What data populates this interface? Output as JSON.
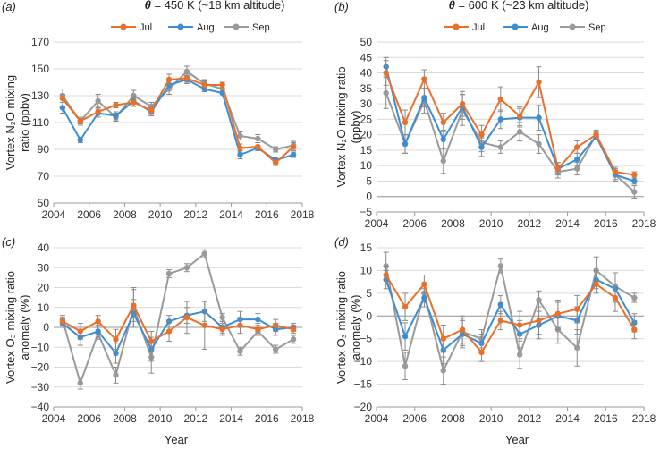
{
  "figure": {
    "titles": {
      "left": {
        "theta": "θ",
        "text": " = 450 K (~18 km altitude)"
      },
      "right": {
        "theta": "θ",
        "text": " = 600 K (~23 km altitude)"
      }
    },
    "xlabel": "Year",
    "legend": [
      "Jul",
      "Aug",
      "Sep"
    ],
    "colors": {
      "Jul": "#e8702a",
      "Aug": "#3d8dd0",
      "Sep": "#9a9a9a"
    }
  },
  "chart_data": [
    {
      "panel": "(a)",
      "type": "line",
      "title": "θ = 450 K (~18 km altitude)",
      "xlabel": "",
      "ylabel": [
        "Vortex N₂O mixing",
        "ratio (ppbv)"
      ],
      "xlim": [
        2004,
        2018
      ],
      "xticks": [
        2004,
        2006,
        2008,
        2010,
        2012,
        2014,
        2016,
        2018
      ],
      "ylim": [
        50,
        170
      ],
      "yticks": [
        50,
        70,
        90,
        110,
        130,
        150,
        170
      ],
      "series": [
        {
          "name": "Jul",
          "x": [
            2004.5,
            2005.5,
            2006.5,
            2007.5,
            2008.5,
            2009.5,
            2010.5,
            2011.5,
            2012.5,
            2013.5,
            2014.5,
            2015.5,
            2016.5,
            2017.5
          ],
          "y": [
            128,
            111,
            118,
            123,
            125,
            119,
            142,
            143,
            138,
            138,
            91,
            92,
            80,
            92
          ],
          "err": [
            3,
            2,
            4,
            2,
            3,
            3,
            4,
            3,
            3,
            2,
            3,
            3,
            2,
            3
          ]
        },
        {
          "name": "Aug",
          "x": [
            2004.5,
            2005.5,
            2006.5,
            2007.5,
            2008.5,
            2009.5,
            2010.5,
            2011.5,
            2012.5,
            2013.5,
            2014.5,
            2015.5,
            2016.5,
            2017.5
          ],
          "y": [
            121,
            97,
            117,
            115,
            126,
            118,
            138,
            142,
            135,
            132,
            86,
            91,
            82,
            86
          ],
          "err": [
            4,
            2,
            3,
            3,
            4,
            3,
            3,
            3,
            2,
            3,
            3,
            2,
            2,
            2
          ]
        },
        {
          "name": "Sep",
          "x": [
            2004.5,
            2005.5,
            2006.5,
            2007.5,
            2008.5,
            2009.5,
            2010.5,
            2011.5,
            2012.5,
            2013.5,
            2014.5,
            2015.5,
            2016.5,
            2017.5
          ],
          "y": [
            130,
            111,
            126,
            114,
            130,
            122,
            135,
            148,
            139,
            135,
            100,
            98,
            90,
            93
          ],
          "err": [
            5,
            3,
            5,
            3,
            4,
            3,
            4,
            4,
            3,
            3,
            3,
            3,
            2,
            3
          ]
        }
      ]
    },
    {
      "panel": "(b)",
      "type": "line",
      "title": "θ = 600 K (~23 km altitude)",
      "xlabel": "",
      "ylabel": [
        "Vortex N₂O mixing ratio",
        "(ppbv)"
      ],
      "xlim": [
        2004,
        2018
      ],
      "xticks": [
        2004,
        2006,
        2008,
        2010,
        2012,
        2014,
        2016,
        2018
      ],
      "ylim": [
        -5,
        50
      ],
      "yticks": [
        -5,
        0,
        5,
        10,
        15,
        20,
        25,
        30,
        35,
        40,
        45,
        50
      ],
      "series": [
        {
          "name": "Jul",
          "x": [
            2004.5,
            2005.5,
            2006.5,
            2007.5,
            2008.5,
            2009.5,
            2010.5,
            2011.5,
            2012.5,
            2013.5,
            2014.5,
            2015.5,
            2016.5,
            2017.5
          ],
          "y": [
            40,
            24,
            38,
            24,
            30,
            20,
            31.5,
            26,
            37,
            9,
            16,
            20,
            8,
            7
          ],
          "err": [
            4,
            4,
            3,
            3,
            4,
            3,
            4,
            3,
            5,
            2,
            2,
            1,
            1.5,
            1
          ]
        },
        {
          "name": "Aug",
          "x": [
            2004.5,
            2005.5,
            2006.5,
            2007.5,
            2008.5,
            2009.5,
            2010.5,
            2011.5,
            2012.5,
            2013.5,
            2014.5,
            2015.5,
            2016.5,
            2017.5
          ],
          "y": [
            42,
            17,
            32,
            18.5,
            29,
            16,
            25,
            25.5,
            25.5,
            9,
            12,
            19.5,
            7,
            5
          ],
          "err": [
            3,
            3,
            3,
            3,
            4,
            3,
            3,
            3,
            4,
            2,
            2,
            1,
            1.5,
            1
          ]
        },
        {
          "name": "Sep",
          "x": [
            2004.5,
            2005.5,
            2006.5,
            2007.5,
            2008.5,
            2009.5,
            2010.5,
            2011.5,
            2012.5,
            2013.5,
            2014.5,
            2015.5,
            2016.5,
            2017.5
          ],
          "y": [
            33.5,
            17,
            31,
            11.5,
            28,
            17.5,
            16,
            21,
            17,
            8,
            9,
            20,
            7,
            1.5
          ],
          "err": [
            5,
            3,
            4,
            4,
            5,
            3,
            2,
            3,
            3,
            2,
            2,
            1.5,
            2,
            2
          ]
        }
      ]
    },
    {
      "panel": "(c)",
      "type": "line",
      "xlabel": "Year",
      "ylabel": [
        "Vortex O₃ mixing ratio",
        "anomaly (%)"
      ],
      "xlim": [
        2004,
        2018
      ],
      "xticks": [
        2004,
        2006,
        2008,
        2010,
        2012,
        2014,
        2016,
        2018
      ],
      "ylim": [
        -40,
        40
      ],
      "yticks": [
        -40,
        -30,
        -20,
        -10,
        0,
        10,
        20,
        30,
        40
      ],
      "series": [
        {
          "name": "Jul",
          "x": [
            2004.5,
            2005.5,
            2006.5,
            2007.5,
            2008.5,
            2009.5,
            2010.5,
            2011.5,
            2012.5,
            2013.5,
            2014.5,
            2015.5,
            2016.5,
            2017.5
          ],
          "y": [
            3,
            -2,
            3,
            -6,
            11,
            -7,
            -2,
            5,
            1,
            -1,
            1,
            -1,
            1,
            -1
          ],
          "err": [
            2,
            4,
            3,
            5,
            8,
            5,
            5,
            8,
            12,
            3,
            4,
            3,
            3,
            2
          ]
        },
        {
          "name": "Aug",
          "x": [
            2004.5,
            2005.5,
            2006.5,
            2007.5,
            2008.5,
            2009.5,
            2010.5,
            2011.5,
            2012.5,
            2013.5,
            2014.5,
            2015.5,
            2016.5,
            2017.5
          ],
          "y": [
            2,
            -5,
            -2,
            -13,
            7,
            -11,
            3,
            6,
            8,
            0,
            4,
            4,
            -1,
            0
          ],
          "err": [
            2,
            4,
            3,
            5,
            7,
            6,
            3,
            4,
            5,
            3,
            4,
            3,
            3,
            2
          ]
        },
        {
          "name": "Sep",
          "x": [
            2004.5,
            2005.5,
            2006.5,
            2007.5,
            2008.5,
            2009.5,
            2010.5,
            2011.5,
            2012.5,
            2013.5,
            2014.5,
            2015.5,
            2016.5,
            2017.5
          ],
          "y": [
            4,
            -28,
            -3,
            -24,
            10,
            -15,
            27,
            30,
            37,
            5,
            -12,
            -2,
            -11,
            -6
          ],
          "err": [
            2,
            3,
            3,
            4,
            10,
            8,
            2,
            2,
            2,
            2,
            2,
            2,
            2,
            2
          ]
        }
      ]
    },
    {
      "panel": "(d)",
      "type": "line",
      "xlabel": "Year",
      "ylabel": [
        "Vortex O₃ mixing ratio",
        "anomaly (%)"
      ],
      "xlim": [
        2004,
        2018
      ],
      "xticks": [
        2004,
        2006,
        2008,
        2010,
        2012,
        2014,
        2016,
        2018
      ],
      "ylim": [
        -20,
        15
      ],
      "yticks": [
        -20,
        -15,
        -10,
        -5,
        0,
        5,
        10,
        15
      ],
      "series": [
        {
          "name": "Jul",
          "x": [
            2004.5,
            2005.5,
            2006.5,
            2007.5,
            2008.5,
            2009.5,
            2010.5,
            2011.5,
            2012.5,
            2013.5,
            2014.5,
            2015.5,
            2016.5,
            2017.5
          ],
          "y": [
            9,
            2,
            7,
            -5,
            -3,
            -8,
            -1,
            -2,
            -1,
            0.5,
            1.5,
            7,
            4,
            -3
          ],
          "err": [
            2,
            3,
            2,
            3,
            3,
            2,
            2,
            3,
            3,
            3,
            3,
            2,
            3,
            2
          ]
        },
        {
          "name": "Aug",
          "x": [
            2004.5,
            2005.5,
            2006.5,
            2007.5,
            2008.5,
            2009.5,
            2010.5,
            2011.5,
            2012.5,
            2013.5,
            2014.5,
            2015.5,
            2016.5,
            2017.5
          ],
          "y": [
            8,
            -4.5,
            4,
            -7.5,
            -4,
            -6,
            2.5,
            -4,
            -2,
            0,
            -1,
            8,
            6,
            -1.5
          ],
          "err": [
            2,
            3,
            2,
            3,
            3,
            2,
            2,
            3,
            3,
            3,
            3,
            2,
            3,
            2
          ]
        },
        {
          "name": "Sep",
          "x": [
            2004.5,
            2005.5,
            2006.5,
            2007.5,
            2008.5,
            2009.5,
            2010.5,
            2011.5,
            2012.5,
            2013.5,
            2014.5,
            2015.5,
            2016.5,
            2017.5
          ],
          "y": [
            11,
            -11,
            5,
            -12,
            -3.5,
            -5,
            11,
            -8.5,
            3.5,
            -3,
            -7,
            10,
            6.5,
            4
          ],
          "err": [
            3,
            3,
            2,
            3,
            3,
            2,
            1.5,
            3,
            2,
            3,
            4,
            3,
            3,
            1
          ]
        }
      ]
    }
  ]
}
